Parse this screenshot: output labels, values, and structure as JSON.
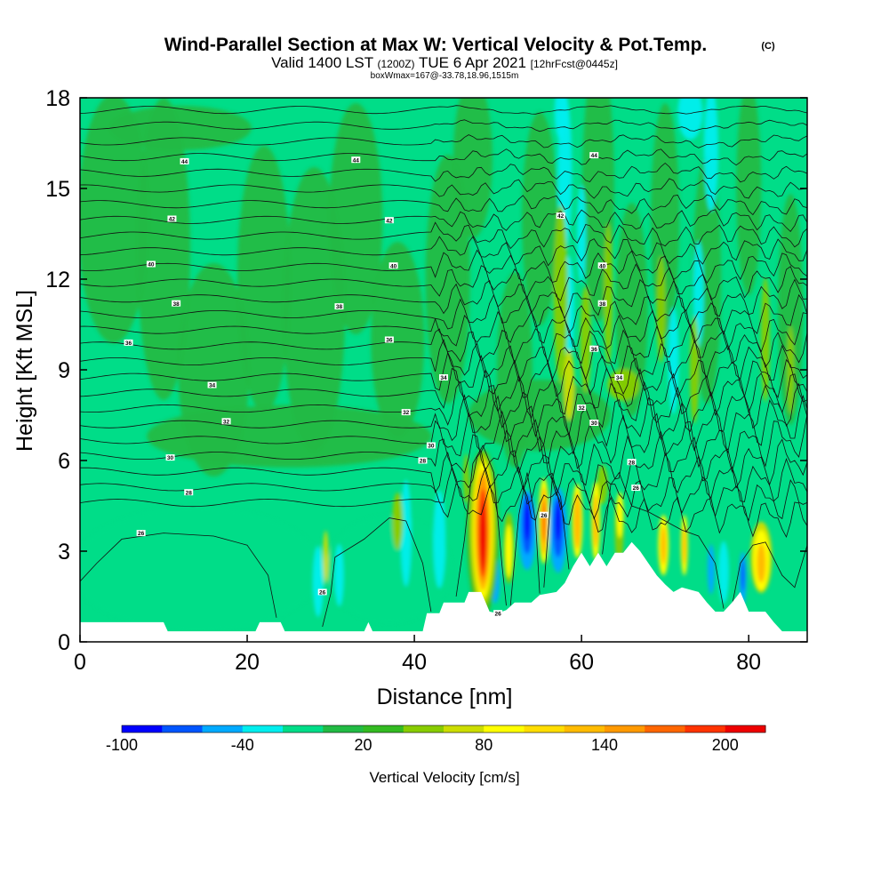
{
  "chart_data": {
    "type": "heatmap",
    "title": "Wind-Parallel Section at Max W: Vertical Velocity & Pot.Temp.",
    "copyright": "(C)",
    "subtitle": {
      "valid_prefix": "Valid 1400 LST",
      "utc": "(1200Z)",
      "date": "TUE 6 Apr 2021",
      "forecast": "[12hrFcst@0445z]"
    },
    "box_info": "boxWmax=167@-33.78,18.96,1515m",
    "xlabel": "Distance [nm]",
    "ylabel": "Height [Kft MSL]",
    "xlim": [
      0,
      87
    ],
    "ylim": [
      0,
      18
    ],
    "x_ticks": [
      0,
      20,
      40,
      60,
      80
    ],
    "y_ticks": [
      0,
      3,
      6,
      9,
      12,
      15,
      18
    ],
    "colorbar": {
      "label": "Vertical Velocity [cm/s]",
      "tick_labels": [
        "-100",
        "-40",
        "20",
        "80",
        "140",
        "200"
      ],
      "tick_values": [
        -100,
        -40,
        20,
        80,
        140,
        200
      ],
      "bins": [
        -100,
        -80,
        -60,
        -40,
        -20,
        0,
        20,
        40,
        60,
        80,
        100,
        120,
        140,
        160,
        180,
        200,
        220
      ],
      "colors": [
        "#0000ff",
        "#0055ff",
        "#00aaff",
        "#00eeee",
        "#00dd88",
        "#22bb44",
        "#33bb22",
        "#88cc00",
        "#ccdd00",
        "#ffff00",
        "#ffdd00",
        "#ffbb00",
        "#ff9900",
        "#ff6600",
        "#ff3300",
        "#ee0000",
        "#bb0033"
      ]
    },
    "terrain_nm_kft": [
      [
        0,
        0.65
      ],
      [
        10,
        0.65
      ],
      [
        10.5,
        0.35
      ],
      [
        21,
        0.35
      ],
      [
        21.5,
        0.65
      ],
      [
        24,
        0.65
      ],
      [
        24.5,
        0.35
      ],
      [
        34,
        0.35
      ],
      [
        34.5,
        0.65
      ],
      [
        35,
        0.35
      ],
      [
        41,
        0.35
      ],
      [
        41.5,
        0.95
      ],
      [
        43,
        0.95
      ],
      [
        43.5,
        1.3
      ],
      [
        46,
        1.3
      ],
      [
        46.5,
        1.65
      ],
      [
        48,
        1.65
      ],
      [
        49,
        1.0
      ],
      [
        50,
        0.95
      ],
      [
        51,
        1.05
      ],
      [
        52,
        1.3
      ],
      [
        54,
        1.3
      ],
      [
        55,
        1.55
      ],
      [
        57,
        1.65
      ],
      [
        58,
        1.95
      ],
      [
        59,
        2.5
      ],
      [
        60,
        2.95
      ],
      [
        61,
        2.5
      ],
      [
        62,
        2.95
      ],
      [
        63,
        2.5
      ],
      [
        64,
        2.95
      ],
      [
        65,
        2.95
      ],
      [
        66,
        3.3
      ],
      [
        67,
        3.0
      ],
      [
        68,
        2.6
      ],
      [
        69,
        2.2
      ],
      [
        70,
        1.9
      ],
      [
        71,
        1.65
      ],
      [
        72,
        1.8
      ],
      [
        74,
        1.65
      ],
      [
        75,
        1.3
      ],
      [
        76,
        1.0
      ],
      [
        77,
        1.0
      ],
      [
        78,
        1.3
      ],
      [
        79,
        1.65
      ],
      [
        80,
        1.0
      ],
      [
        82,
        1.0
      ],
      [
        83,
        0.65
      ],
      [
        84,
        0.35
      ],
      [
        87,
        0.35
      ]
    ],
    "isentrope_labels": [
      {
        "x": 12.5,
        "y": 15.9,
        "text": "44"
      },
      {
        "x": 33,
        "y": 15.95,
        "text": "44"
      },
      {
        "x": 61.5,
        "y": 16.1,
        "text": "44"
      },
      {
        "x": 11,
        "y": 14.0,
        "text": "42"
      },
      {
        "x": 37,
        "y": 13.95,
        "text": "42"
      },
      {
        "x": 57.5,
        "y": 14.1,
        "text": "42"
      },
      {
        "x": 8.5,
        "y": 12.5,
        "text": "40"
      },
      {
        "x": 37.5,
        "y": 12.45,
        "text": "40"
      },
      {
        "x": 62.5,
        "y": 12.45,
        "text": "40"
      },
      {
        "x": 11.5,
        "y": 11.2,
        "text": "38"
      },
      {
        "x": 31,
        "y": 11.1,
        "text": "38"
      },
      {
        "x": 62.5,
        "y": 11.2,
        "text": "38"
      },
      {
        "x": 5.8,
        "y": 9.9,
        "text": "36"
      },
      {
        "x": 37,
        "y": 10.0,
        "text": "36"
      },
      {
        "x": 61.5,
        "y": 9.7,
        "text": "36"
      },
      {
        "x": 15.8,
        "y": 8.5,
        "text": "34"
      },
      {
        "x": 43.5,
        "y": 8.75,
        "text": "34"
      },
      {
        "x": 64.5,
        "y": 8.75,
        "text": "34"
      },
      {
        "x": 17.5,
        "y": 7.3,
        "text": "32"
      },
      {
        "x": 39,
        "y": 7.6,
        "text": "32"
      },
      {
        "x": 60,
        "y": 7.75,
        "text": "32"
      },
      {
        "x": 10.8,
        "y": 6.1,
        "text": "30"
      },
      {
        "x": 42,
        "y": 6.5,
        "text": "30"
      },
      {
        "x": 61.5,
        "y": 7.25,
        "text": "30"
      },
      {
        "x": 13,
        "y": 4.95,
        "text": "28"
      },
      {
        "x": 41,
        "y": 6.0,
        "text": "28"
      },
      {
        "x": 66,
        "y": 5.95,
        "text": "28"
      },
      {
        "x": 7.3,
        "y": 3.6,
        "text": "26"
      },
      {
        "x": 66.5,
        "y": 5.1,
        "text": "26"
      },
      {
        "x": 29,
        "y": 1.65,
        "text": "26"
      },
      {
        "x": 55.5,
        "y": 4.2,
        "text": "26"
      },
      {
        "x": 50,
        "y": 0.95,
        "text": "26"
      }
    ]
  }
}
